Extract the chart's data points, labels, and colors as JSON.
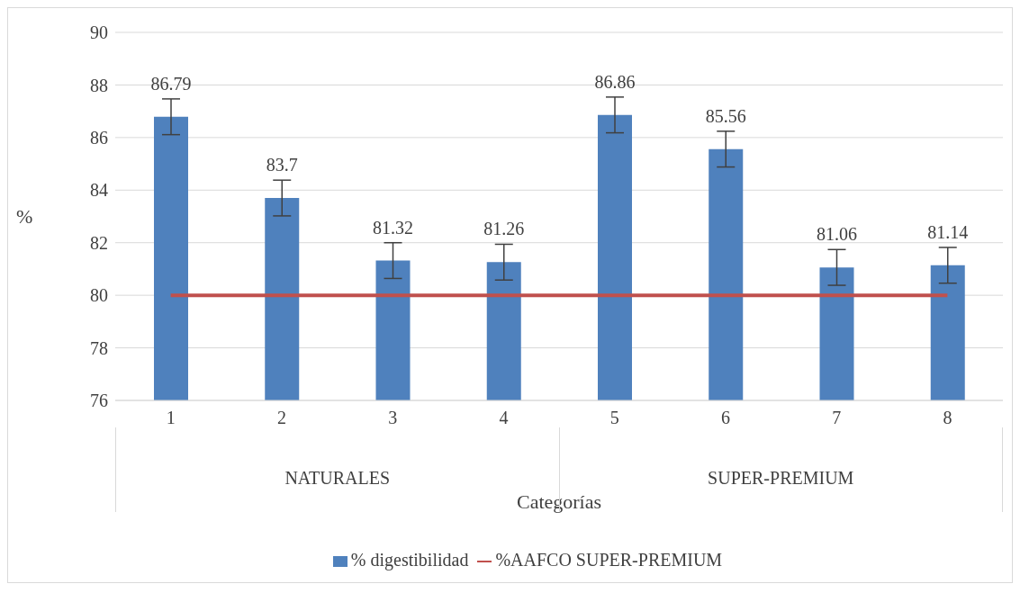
{
  "chart_data": {
    "type": "bar",
    "xlabel": "Categorías",
    "ylabel": "%",
    "categories": [
      "1",
      "2",
      "3",
      "4",
      "5",
      "6",
      "7",
      "8"
    ],
    "series": [
      {
        "name": "% digestibilidad",
        "color": "#4f81bd",
        "values": [
          86.79,
          83.7,
          81.32,
          81.26,
          86.86,
          85.56,
          81.06,
          81.14
        ],
        "value_labels": [
          "86.79",
          "83.7",
          "81.32",
          "81.26",
          "86.86",
          "85.56",
          "81.06",
          "81.14"
        ],
        "errors": [
          0.68,
          0.68,
          0.68,
          0.68,
          0.68,
          0.68,
          0.68,
          0.68
        ]
      },
      {
        "name": "%AAFCO SUPER-PREMIUM",
        "type": "line",
        "color": "#c0504d",
        "values": [
          80,
          80,
          80,
          80,
          80,
          80,
          80,
          80
        ]
      }
    ],
    "annotations": [
      "NATURALES",
      "SUPER-PREMIUM"
    ],
    "ylim": [
      76,
      90
    ],
    "yticks": [
      76,
      78,
      80,
      82,
      84,
      86,
      88,
      90
    ],
    "grid": "y",
    "legend": "bottom",
    "marker": "none"
  }
}
